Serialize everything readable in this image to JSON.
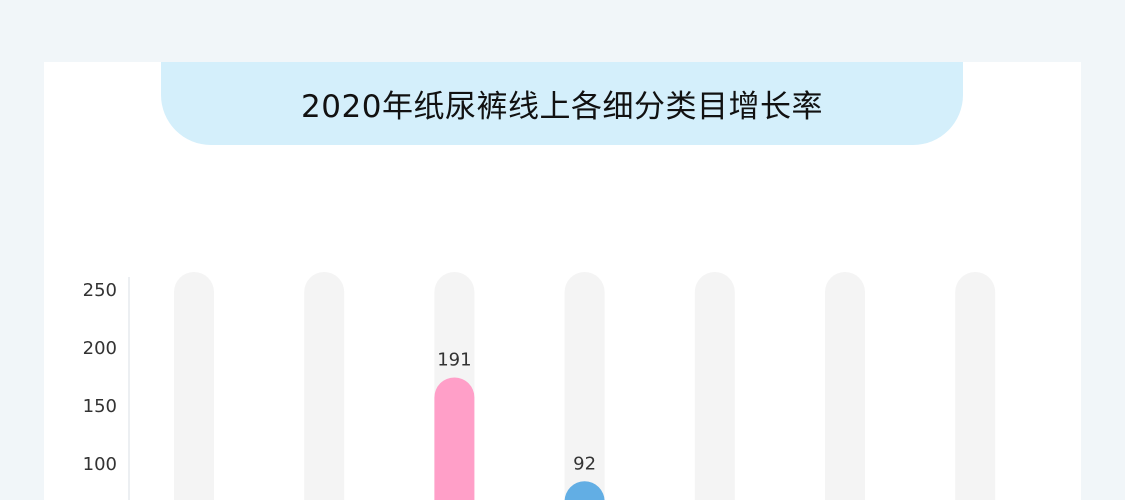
{
  "chart_data": {
    "type": "bar",
    "title": "2020年纸尿裤线上各细分类目增长率",
    "yticks": [
      100,
      150,
      200,
      250
    ],
    "ylim": [
      0,
      250
    ],
    "values": [
      null,
      null,
      191,
      92,
      null,
      null,
      null
    ],
    "data_labels": [
      "",
      "",
      "191",
      "92",
      "",
      "",
      ""
    ],
    "colors": {
      "track": "#f4f4f4",
      "bar3": "#ff9fc8",
      "bar4": "#62aee4",
      "banner": "#d4effb",
      "background": "#f1f6f9"
    },
    "grid": false
  }
}
